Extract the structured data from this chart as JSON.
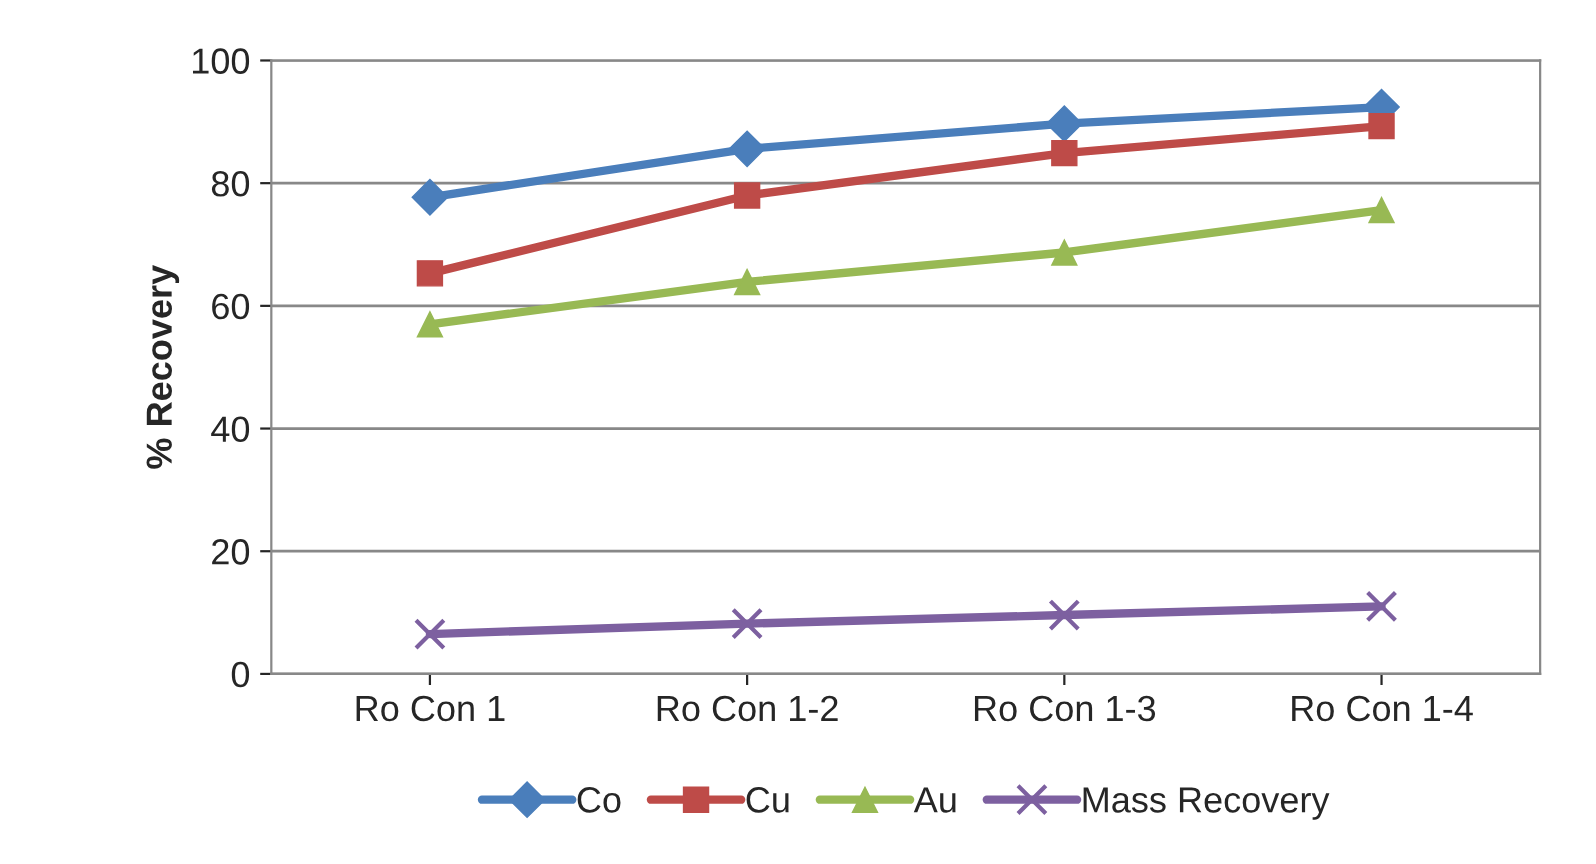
{
  "chart_data": {
    "type": "line",
    "ylabel": "% Recovery",
    "categories": [
      "Ro Con 1",
      "Ro Con 1-2",
      "Ro Con 1-3",
      "Ro Con 1-4"
    ],
    "series": [
      {
        "name": "Co",
        "color": "#4a7ebb",
        "marker": "diamond",
        "values": [
          77.7,
          85.6,
          89.7,
          92.4
        ]
      },
      {
        "name": "Cu",
        "color": "#be4b48",
        "marker": "square",
        "values": [
          65.3,
          78,
          84.9,
          89.3
        ]
      },
      {
        "name": "Au",
        "color": "#98b954",
        "marker": "triangle",
        "values": [
          57,
          63.9,
          68.7,
          75.6
        ]
      },
      {
        "name": "Mass Recovery",
        "color": "#7d60a0",
        "marker": "cross",
        "values": [
          6.5,
          8.2,
          9.6,
          11
        ]
      }
    ],
    "ylim": [
      0,
      100
    ],
    "yticks": [
      0,
      20,
      40,
      60,
      80,
      100
    ],
    "grid": "y",
    "legend": "bottom",
    "line_style": "solid"
  }
}
